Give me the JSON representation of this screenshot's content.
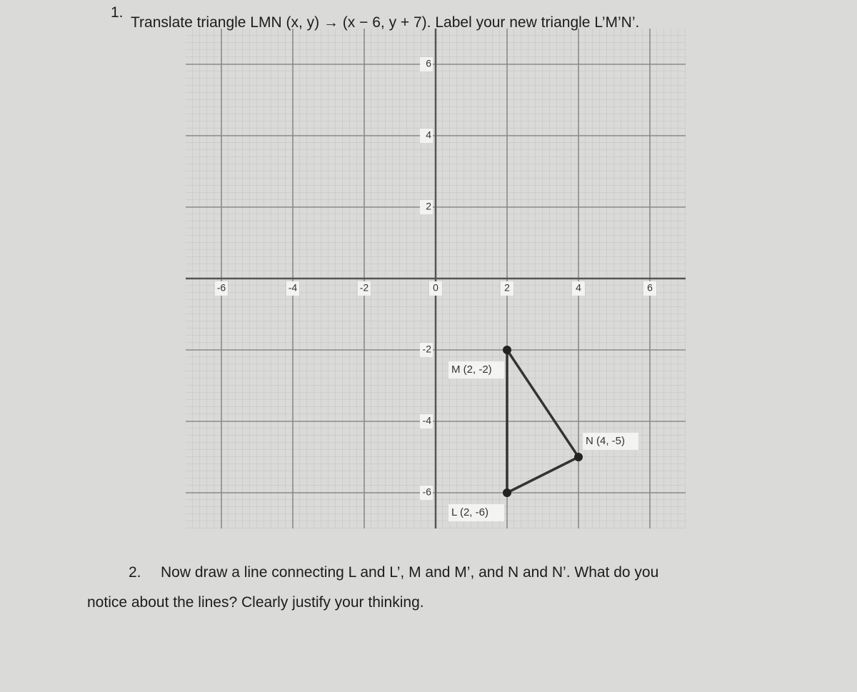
{
  "question1": {
    "number": "1.",
    "text": "Translate triangle LMN (x, y) → (x − 6, y + 7). Label your new triangle L’M’N’."
  },
  "plane": {
    "xlim": [
      -7,
      7
    ],
    "ylim": [
      -7,
      7
    ],
    "xticks": [
      -6,
      -4,
      -2,
      0,
      2,
      4,
      6
    ],
    "yticks": [
      6,
      4,
      2,
      -2,
      -4,
      -6
    ],
    "points": [
      {
        "label": "L (2, -6)",
        "x": 2,
        "y": -6
      },
      {
        "label": "M (2, -2)",
        "x": 2,
        "y": -2
      },
      {
        "label": "N (4, -5)",
        "x": 4,
        "y": -5
      }
    ]
  },
  "question2": {
    "number": "2.",
    "line1": "Now draw a line connecting L and L’, M and M’, and N and N’. What do you",
    "line2": "notice about the lines? Clearly justify your thinking."
  }
}
